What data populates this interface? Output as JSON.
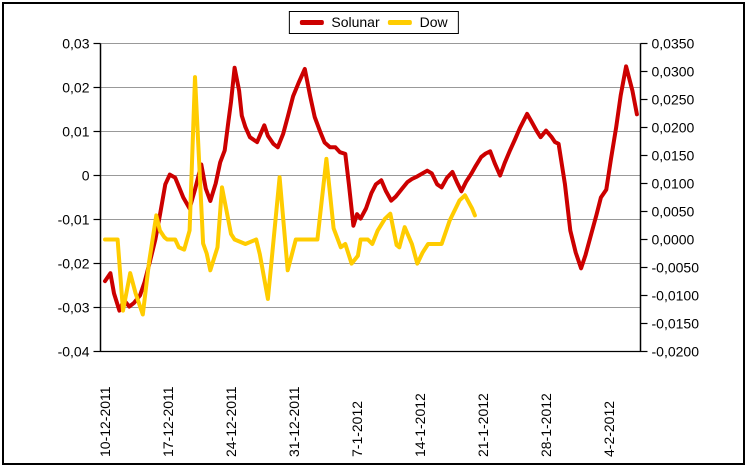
{
  "legend": {
    "items": [
      {
        "label": "Solunar",
        "color": "#cc0000"
      },
      {
        "label": "Dow",
        "color": "#ffcc00"
      }
    ]
  },
  "chart_data": {
    "type": "line",
    "title": "",
    "legend_position": "top-center",
    "grid": "horizontal-only",
    "colors": {
      "grid": "#999999",
      "axis": "#000000",
      "text": "#000000",
      "background": "#ffffff"
    },
    "x_axis": {
      "tick_labels": [
        "10-12-2011",
        "17-12-2011",
        "24-12-2011",
        "31-12-2011",
        "7-1-2012",
        "14-1-2012",
        "21-1-2012",
        "28-1-2012",
        "4-2-2012"
      ],
      "tick_day_index": [
        0,
        7,
        14,
        21,
        28,
        35,
        42,
        49,
        56
      ],
      "unit": "date d-m-yyyy, one data point per day, day 0 = 10-12-2011"
    },
    "left_axis": {
      "tick_labels": [
        "0,03",
        "0,02",
        "0,01",
        "0",
        "-0,01",
        "-0,02",
        "-0,03",
        "-0,04"
      ],
      "tick_values": [
        0.03,
        0.02,
        0.01,
        0,
        -0.01,
        -0.02,
        -0.03,
        -0.04
      ],
      "range": [
        -0.04,
        0.03
      ],
      "series": "Solunar"
    },
    "right_axis": {
      "tick_labels": [
        "0,0350",
        "0,0300",
        "0,0250",
        "0,0200",
        "0,0150",
        "0,0100",
        "0,0050",
        "0,0000",
        "-0,0050",
        "-0,0100",
        "-0,0150",
        "-0,0200"
      ],
      "tick_values": [
        0.035,
        0.03,
        0.025,
        0.02,
        0.015,
        0.01,
        0.005,
        0,
        -0.005,
        -0.01,
        -0.015,
        -0.02
      ],
      "range": [
        -0.02,
        0.035
      ],
      "series": "Dow"
    },
    "series": [
      {
        "name": "Solunar",
        "axis": "left",
        "color": "#cc0000",
        "points": [
          [
            0,
            -0.024
          ],
          [
            0.6,
            -0.0222
          ],
          [
            1.0,
            -0.0268
          ],
          [
            1.6,
            -0.0307
          ],
          [
            2.1,
            -0.0283
          ],
          [
            2.7,
            -0.0298
          ],
          [
            3.2,
            -0.029
          ],
          [
            3.9,
            -0.0272
          ],
          [
            4.4,
            -0.0242
          ],
          [
            5.0,
            -0.0195
          ],
          [
            5.6,
            -0.0145
          ],
          [
            6.1,
            -0.009
          ],
          [
            6.7,
            -0.002
          ],
          [
            7.2,
            0.0002
          ],
          [
            7.8,
            -0.0005
          ],
          [
            8.1,
            -0.002
          ],
          [
            8.7,
            -0.005
          ],
          [
            9.4,
            -0.0075
          ],
          [
            10.0,
            -0.0032
          ],
          [
            10.7,
            0.0025
          ],
          [
            11.2,
            -0.003
          ],
          [
            11.7,
            -0.0058
          ],
          [
            12.3,
            -0.0018
          ],
          [
            12.8,
            0.003
          ],
          [
            13.3,
            0.0057
          ],
          [
            13.7,
            0.0121
          ],
          [
            14.0,
            0.0167
          ],
          [
            14.4,
            0.0245
          ],
          [
            14.9,
            0.0193
          ],
          [
            15.2,
            0.0136
          ],
          [
            15.6,
            0.011
          ],
          [
            16.1,
            0.0087
          ],
          [
            16.9,
            0.0076
          ],
          [
            17.3,
            0.0095
          ],
          [
            17.7,
            0.0114
          ],
          [
            18.1,
            0.009
          ],
          [
            18.7,
            0.0072
          ],
          [
            19.2,
            0.0064
          ],
          [
            19.8,
            0.0095
          ],
          [
            20.3,
            0.0133
          ],
          [
            20.9,
            0.018
          ],
          [
            21.5,
            0.021
          ],
          [
            22.2,
            0.0242
          ],
          [
            22.8,
            0.018
          ],
          [
            23.3,
            0.0133
          ],
          [
            23.9,
            0.01
          ],
          [
            24.4,
            0.0075
          ],
          [
            25.0,
            0.0064
          ],
          [
            25.6,
            0.0064
          ],
          [
            26.1,
            0.0053
          ],
          [
            26.7,
            0.0049
          ],
          [
            27.1,
            -0.002
          ],
          [
            27.6,
            -0.0114
          ],
          [
            28.0,
            -0.0088
          ],
          [
            28.4,
            -0.0098
          ],
          [
            29.0,
            -0.0075
          ],
          [
            29.6,
            -0.004
          ],
          [
            30.1,
            -0.002
          ],
          [
            30.7,
            -0.0011
          ],
          [
            31.2,
            -0.0035
          ],
          [
            31.8,
            -0.0057
          ],
          [
            32.3,
            -0.0048
          ],
          [
            33.0,
            -0.003
          ],
          [
            33.6,
            -0.0015
          ],
          [
            34.1,
            -0.0008
          ],
          [
            34.7,
            -0.0002
          ],
          [
            35.8,
            0.0011
          ],
          [
            36.3,
            0.0005
          ],
          [
            36.9,
            -0.002
          ],
          [
            37.4,
            -0.0027
          ],
          [
            38.0,
            -0.0005
          ],
          [
            38.6,
            0.0008
          ],
          [
            39.1,
            -0.0015
          ],
          [
            39.6,
            -0.0036
          ],
          [
            40.1,
            -0.0015
          ],
          [
            40.7,
            0.0004
          ],
          [
            41.2,
            0.0022
          ],
          [
            41.8,
            0.0042
          ],
          [
            42.3,
            0.005
          ],
          [
            42.8,
            0.0055
          ],
          [
            43.3,
            0.0028
          ],
          [
            43.9,
            0.0
          ],
          [
            44.4,
            0.0028
          ],
          [
            45.0,
            0.0057
          ],
          [
            45.6,
            0.0084
          ],
          [
            46.1,
            0.0108
          ],
          [
            46.9,
            0.014
          ],
          [
            47.4,
            0.0122
          ],
          [
            48.0,
            0.01
          ],
          [
            48.4,
            0.0087
          ],
          [
            49.0,
            0.0102
          ],
          [
            49.6,
            0.0088
          ],
          [
            50.0,
            0.0076
          ],
          [
            50.4,
            0.0072
          ],
          [
            51.1,
            -0.0019
          ],
          [
            51.7,
            -0.0125
          ],
          [
            52.3,
            -0.0175
          ],
          [
            52.9,
            -0.0211
          ],
          [
            53.4,
            -0.018
          ],
          [
            54.0,
            -0.0135
          ],
          [
            54.6,
            -0.009
          ],
          [
            55.1,
            -0.005
          ],
          [
            55.7,
            -0.0032
          ],
          [
            56.2,
            0.0035
          ],
          [
            56.8,
            0.011
          ],
          [
            57.3,
            0.0182
          ],
          [
            57.9,
            0.0248
          ],
          [
            58.6,
            0.0193
          ],
          [
            59.1,
            0.0139
          ]
        ]
      },
      {
        "name": "Dow",
        "axis": "right",
        "color": "#ffcc00",
        "points": [
          [
            0,
            0.0
          ],
          [
            1.4,
            0.0
          ],
          [
            2.0,
            -0.0127
          ],
          [
            2.8,
            -0.006
          ],
          [
            3.4,
            -0.0096
          ],
          [
            4.2,
            -0.0134
          ],
          [
            4.9,
            -0.004
          ],
          [
            5.7,
            0.0043
          ],
          [
            6.1,
            0.0016
          ],
          [
            6.6,
            0.0004
          ],
          [
            6.9,
            0.0
          ],
          [
            7.8,
            0.0
          ],
          [
            8.2,
            -0.0014
          ],
          [
            8.8,
            -0.0018
          ],
          [
            9.4,
            0.0016
          ],
          [
            10.0,
            0.029
          ],
          [
            10.9,
            -0.0007
          ],
          [
            11.3,
            -0.0025
          ],
          [
            11.7,
            -0.0055
          ],
          [
            12.5,
            -0.0014
          ],
          [
            13.0,
            0.0093
          ],
          [
            14.0,
            0.001
          ],
          [
            14.4,
            0.0
          ],
          [
            15.6,
            -0.0008
          ],
          [
            16.8,
            0.0
          ],
          [
            17.2,
            -0.0026
          ],
          [
            18.1,
            -0.0106
          ],
          [
            19.4,
            0.0111
          ],
          [
            20.3,
            -0.0055
          ],
          [
            21.2,
            0.0
          ],
          [
            23.6,
            0.0
          ],
          [
            24.6,
            0.0144
          ],
          [
            25.4,
            0.002
          ],
          [
            26.2,
            -0.0014
          ],
          [
            26.7,
            -0.0008
          ],
          [
            27.4,
            -0.0043
          ],
          [
            28.1,
            -0.0029
          ],
          [
            28.4,
            0.0
          ],
          [
            29.2,
            0.0
          ],
          [
            29.7,
            -0.0008
          ],
          [
            30.3,
            0.0016
          ],
          [
            31.1,
            0.0037
          ],
          [
            31.7,
            0.0046
          ],
          [
            32.4,
            -0.001
          ],
          [
            32.7,
            -0.0014
          ],
          [
            33.3,
            0.0022
          ],
          [
            34.1,
            -0.0008
          ],
          [
            34.7,
            -0.0043
          ],
          [
            35.3,
            -0.0023
          ],
          [
            35.9,
            -0.0008
          ],
          [
            37.4,
            -0.0008
          ],
          [
            38.3,
            0.0034
          ],
          [
            39.4,
            0.007
          ],
          [
            40.0,
            0.0079
          ],
          [
            40.8,
            0.0055
          ],
          [
            41.1,
            0.0043
          ]
        ]
      }
    ]
  }
}
